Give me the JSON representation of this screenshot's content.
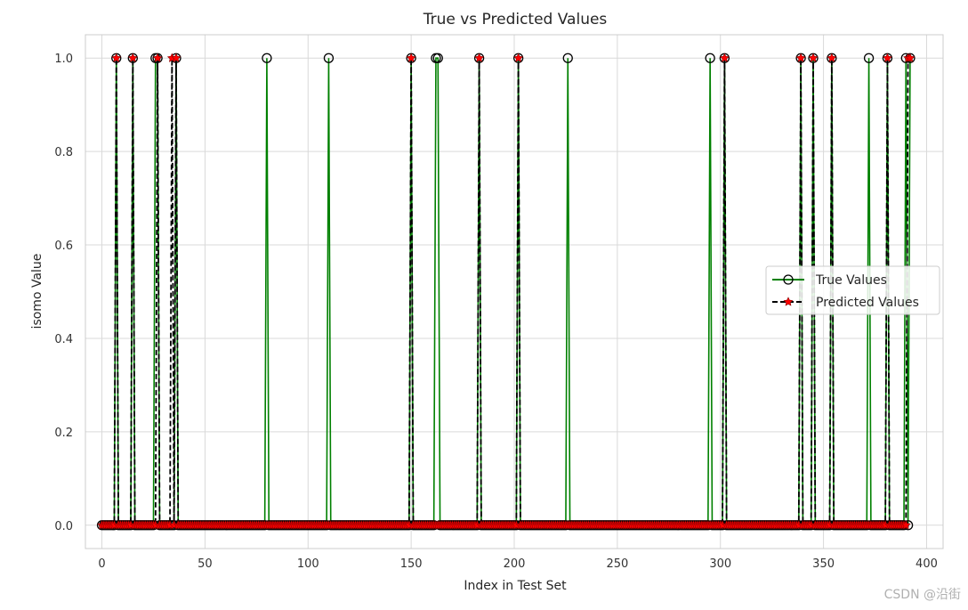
{
  "chart_data": {
    "type": "line",
    "title": "True vs Predicted Values",
    "xlabel": "Index in Test Set",
    "ylabel": "isomo Value",
    "xlim": [
      -8,
      408
    ],
    "ylim": [
      -0.05,
      1.05
    ],
    "x_ticks": [
      0,
      50,
      100,
      150,
      200,
      250,
      300,
      350,
      400
    ],
    "y_ticks": [
      "0.0",
      "0.2",
      "0.4",
      "0.6",
      "0.8",
      "1.0"
    ],
    "grid": true,
    "legend_position": "center-right",
    "n_points": 393,
    "series": [
      {
        "name": "True Values",
        "color": "#008000",
        "marker": "circle-open",
        "marker_edge": "#000000",
        "line_style": "solid",
        "ones": [
          7,
          15,
          26,
          27,
          36,
          80,
          110,
          150,
          162,
          163,
          183,
          202,
          226,
          295,
          302,
          339,
          345,
          354,
          372,
          381,
          390,
          392
        ]
      },
      {
        "name": "Predicted Values",
        "color": "#000000",
        "marker": "star",
        "marker_fill": "#ff0000",
        "line_style": "dashed",
        "ones": [
          7,
          15,
          27,
          34,
          36,
          150,
          183,
          202,
          302,
          339,
          345,
          354,
          381,
          391,
          392
        ]
      }
    ]
  },
  "watermark": "CSDN @沿街"
}
